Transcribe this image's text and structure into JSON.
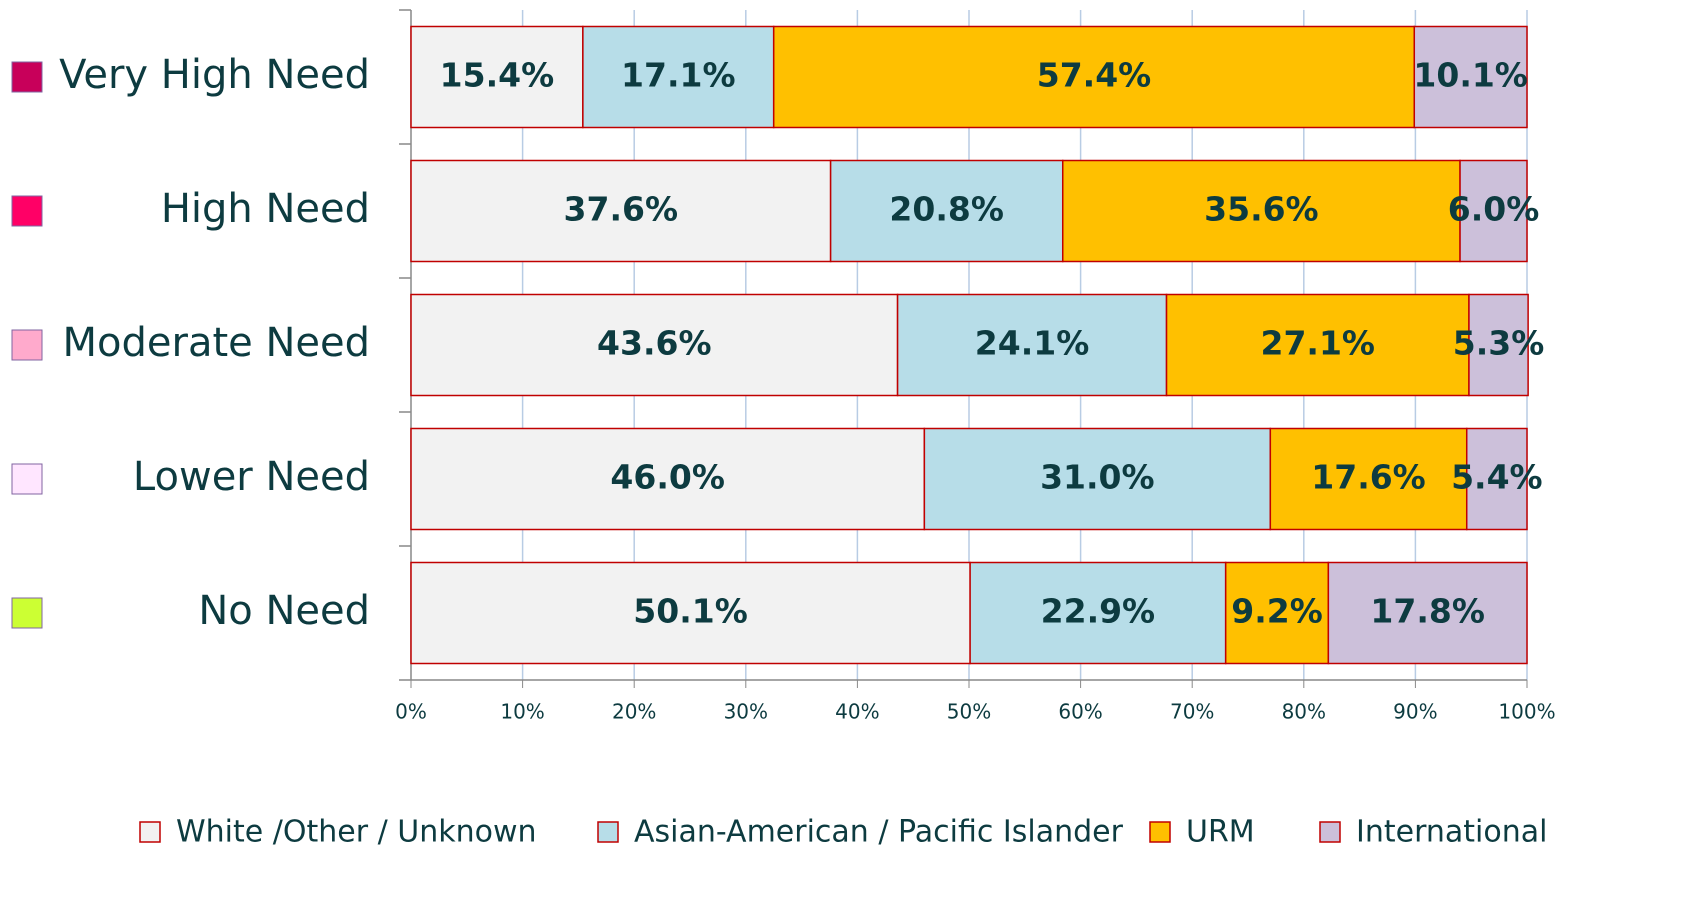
{
  "chart_data": {
    "type": "stacked_barh",
    "categories": [
      "Very High Need",
      "High Need",
      "Moderate Need",
      "Lower Need",
      "No Need"
    ],
    "category_colors": [
      "#c8005a",
      "#ff0066",
      "#ffaacc",
      "#ffe6ff",
      "#ccff33"
    ],
    "series": [
      {
        "name": "White /Other / Unknown",
        "color": "#f2f2f2",
        "values": [
          15.4,
          37.6,
          43.6,
          46.0,
          50.1
        ],
        "value_labels": [
          "15.4%",
          "37.6%",
          "43.6%",
          "46.0%",
          "50.1%"
        ]
      },
      {
        "name": "Asian-American / Pacific Islander",
        "color": "#b7dde8",
        "values": [
          17.1,
          20.8,
          24.1,
          31.0,
          22.9
        ],
        "value_labels": [
          "17.1%",
          "20.8%",
          "24.1%",
          "31.0%",
          "22.9%"
        ]
      },
      {
        "name": "URM",
        "color": "#ffc000",
        "values": [
          57.4,
          35.6,
          27.1,
          17.6,
          9.2
        ],
        "value_labels": [
          "57.4%",
          "35.6%",
          "27.1%",
          "17.6%",
          "9.2%"
        ]
      },
      {
        "name": "International",
        "color": "#ccc0da",
        "values": [
          10.1,
          6.0,
          5.3,
          5.4,
          17.8
        ],
        "value_labels": [
          "10.1%",
          "6.0%",
          "5.3%",
          "5.4%",
          "17.8%"
        ]
      }
    ],
    "xlim": [
      0,
      100
    ],
    "xticks": [
      {
        "value": 0,
        "label": "0%"
      },
      {
        "value": 10,
        "label": "10%"
      },
      {
        "value": 20,
        "label": "20%"
      },
      {
        "value": 30,
        "label": "30%"
      },
      {
        "value": 40,
        "label": "40%"
      },
      {
        "value": 50,
        "label": "50%"
      },
      {
        "value": 60,
        "label": "60%"
      },
      {
        "value": 70,
        "label": "70%"
      },
      {
        "value": 80,
        "label": "80%"
      },
      {
        "value": 90,
        "label": "90%"
      },
      {
        "value": 100,
        "label": "100%"
      }
    ],
    "grid": true,
    "legend": "bottom"
  }
}
